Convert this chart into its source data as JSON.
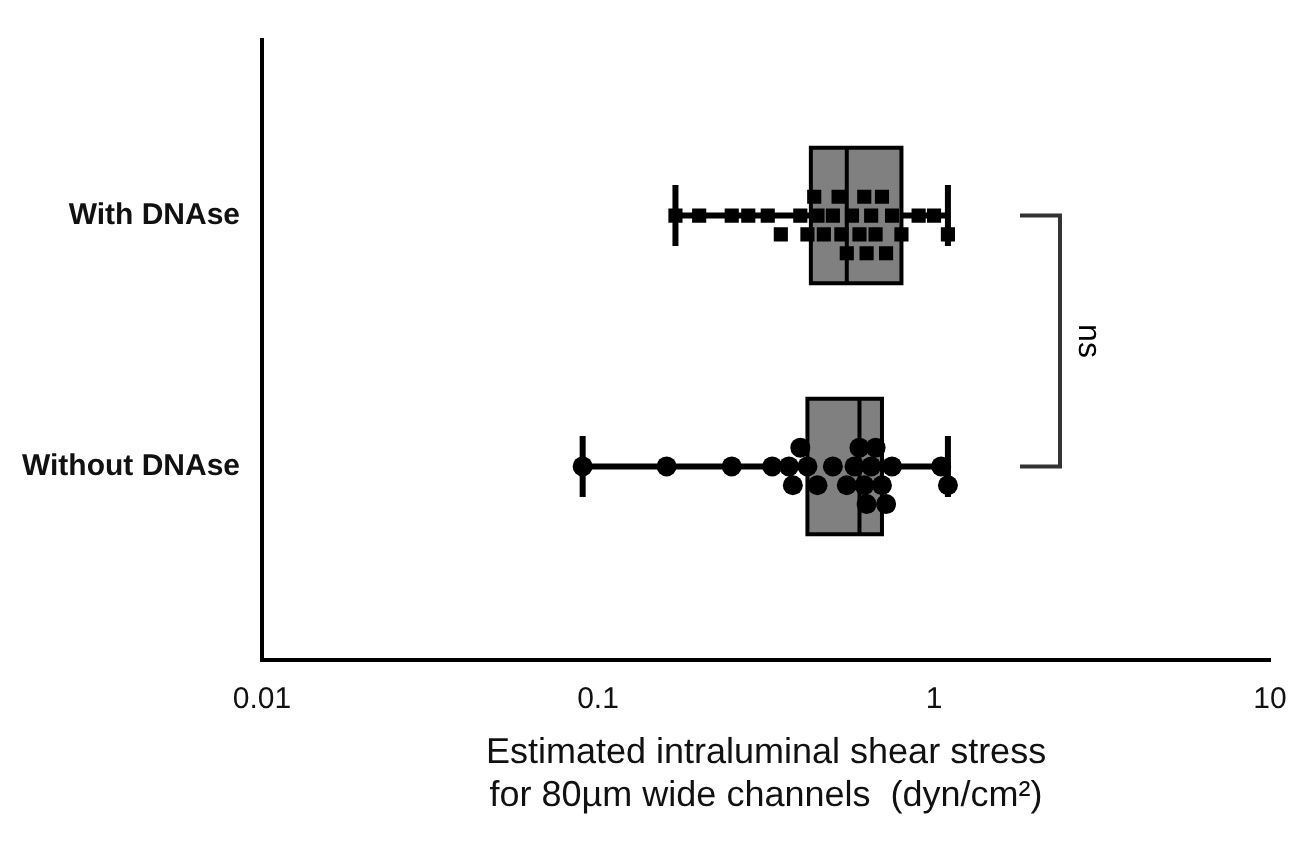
{
  "chart_data": {
    "type": "box",
    "orientation": "horizontal",
    "categories": [
      "With DNAse",
      "Without DNAse"
    ],
    "xlabel": "Estimated intraluminal shear stress\nfor 80µm wide channels  (dyn/cm²)",
    "log": "x",
    "xlim": [
      0.01,
      10
    ],
    "xticks": [
      0.01,
      0.1,
      1,
      10
    ],
    "grid": false,
    "legend": false,
    "annotations": [
      "ns"
    ],
    "series": [
      {
        "color": "#808080",
        "boxes": [
          {
            "low": 0.17,
            "q1": 0.43,
            "median": 0.55,
            "q3": 0.8,
            "high": 1.1
          },
          {
            "low": 0.09,
            "q1": 0.42,
            "median": 0.6,
            "q3": 0.7,
            "high": 1.1
          }
        ]
      },
      {
        "type": "scatter",
        "color": "#000000",
        "marker": "square",
        "x": [
          "With DNAse",
          "With DNAse",
          "With DNAse",
          "With DNAse",
          "With DNAse",
          "With DNAse",
          "With DNAse",
          "With DNAse",
          "With DNAse",
          "With DNAse",
          "With DNAse",
          "With DNAse",
          "With DNAse",
          "With DNAse",
          "With DNAse",
          "With DNAse",
          "With DNAse",
          "With DNAse",
          "With DNAse",
          "With DNAse",
          "With DNAse",
          "With DNAse",
          "With DNAse",
          "With DNAse",
          "With DNAse",
          "With DNAse",
          "With DNAse",
          "With DNAse"
        ],
        "values": [
          0.17,
          0.2,
          0.25,
          0.28,
          0.32,
          0.35,
          0.4,
          0.42,
          0.44,
          0.45,
          0.47,
          0.5,
          0.52,
          0.53,
          0.55,
          0.57,
          0.6,
          0.62,
          0.63,
          0.65,
          0.67,
          0.7,
          0.72,
          0.75,
          0.8,
          0.9,
          1.0,
          1.1
        ]
      },
      {
        "type": "scatter",
        "color": "#000000",
        "marker": "circle",
        "x": [
          "Without DNAse",
          "Without DNAse",
          "Without DNAse",
          "Without DNAse",
          "Without DNAse",
          "Without DNAse",
          "Without DNAse",
          "Without DNAse",
          "Without DNAse",
          "Without DNAse",
          "Without DNAse",
          "Without DNAse",
          "Without DNAse",
          "Without DNAse",
          "Without DNAse",
          "Without DNAse",
          "Without DNAse",
          "Without DNAse",
          "Without DNAse",
          "Without DNAse",
          "Without DNAse",
          "Without DNAse"
        ],
        "values": [
          0.09,
          0.16,
          0.25,
          0.33,
          0.37,
          0.38,
          0.4,
          0.42,
          0.45,
          0.5,
          0.55,
          0.58,
          0.6,
          0.62,
          0.63,
          0.65,
          0.67,
          0.7,
          0.72,
          0.75,
          1.05,
          1.1
        ]
      }
    ]
  }
}
